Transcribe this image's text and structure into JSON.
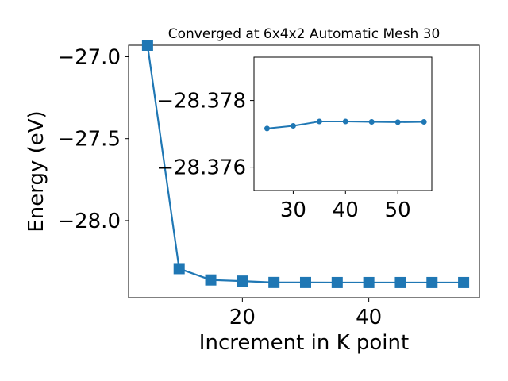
{
  "chart_data": [
    {
      "type": "line",
      "title": "Converged at 6x4x2 Automatic Mesh 30",
      "xlabel": "Increment in K point",
      "ylabel": "Energy (eV)",
      "xlim": [
        2,
        57.5
      ],
      "ylim": [
        -28.47,
        -26.93
      ],
      "xticks": [
        20,
        40
      ],
      "yticks": [
        -27.0,
        -27.5,
        -28.0
      ],
      "xtick_labels": [
        "20",
        "40"
      ],
      "ytick_labels": [
        "−27.0",
        "−27.5",
        "−28.0"
      ],
      "grid": false,
      "legend": false,
      "series": [
        {
          "marker": "square",
          "color": "#1f77b4",
          "x": [
            5,
            10,
            15,
            20,
            25,
            30,
            35,
            40,
            45,
            50,
            55
          ],
          "y": [
            -26.93,
            -28.293,
            -28.362,
            -28.369,
            -28.3773,
            -28.3775,
            -28.3777,
            -28.3777,
            -28.3777,
            -28.3777,
            -28.3777
          ]
        }
      ]
    },
    {
      "type": "line",
      "title": "",
      "xlabel": "",
      "ylabel": "",
      "xlim": [
        22.5,
        56.5
      ],
      "ylim": [
        -28.3753,
        -28.3793
      ],
      "xticks": [
        30,
        40,
        50
      ],
      "yticks": [
        -28.378,
        -28.376
      ],
      "xtick_labels": [
        "30",
        "40",
        "50"
      ],
      "ytick_labels": [
        "−28.378",
        "−28.376"
      ],
      "grid": false,
      "legend": false,
      "series": [
        {
          "marker": "circle",
          "color": "#1f77b4",
          "x": [
            25,
            30,
            35,
            40,
            45,
            50,
            55
          ],
          "y": [
            -28.37716,
            -28.37724,
            -28.37737,
            -28.37737,
            -28.37736,
            -28.37735,
            -28.37736
          ]
        }
      ]
    }
  ]
}
